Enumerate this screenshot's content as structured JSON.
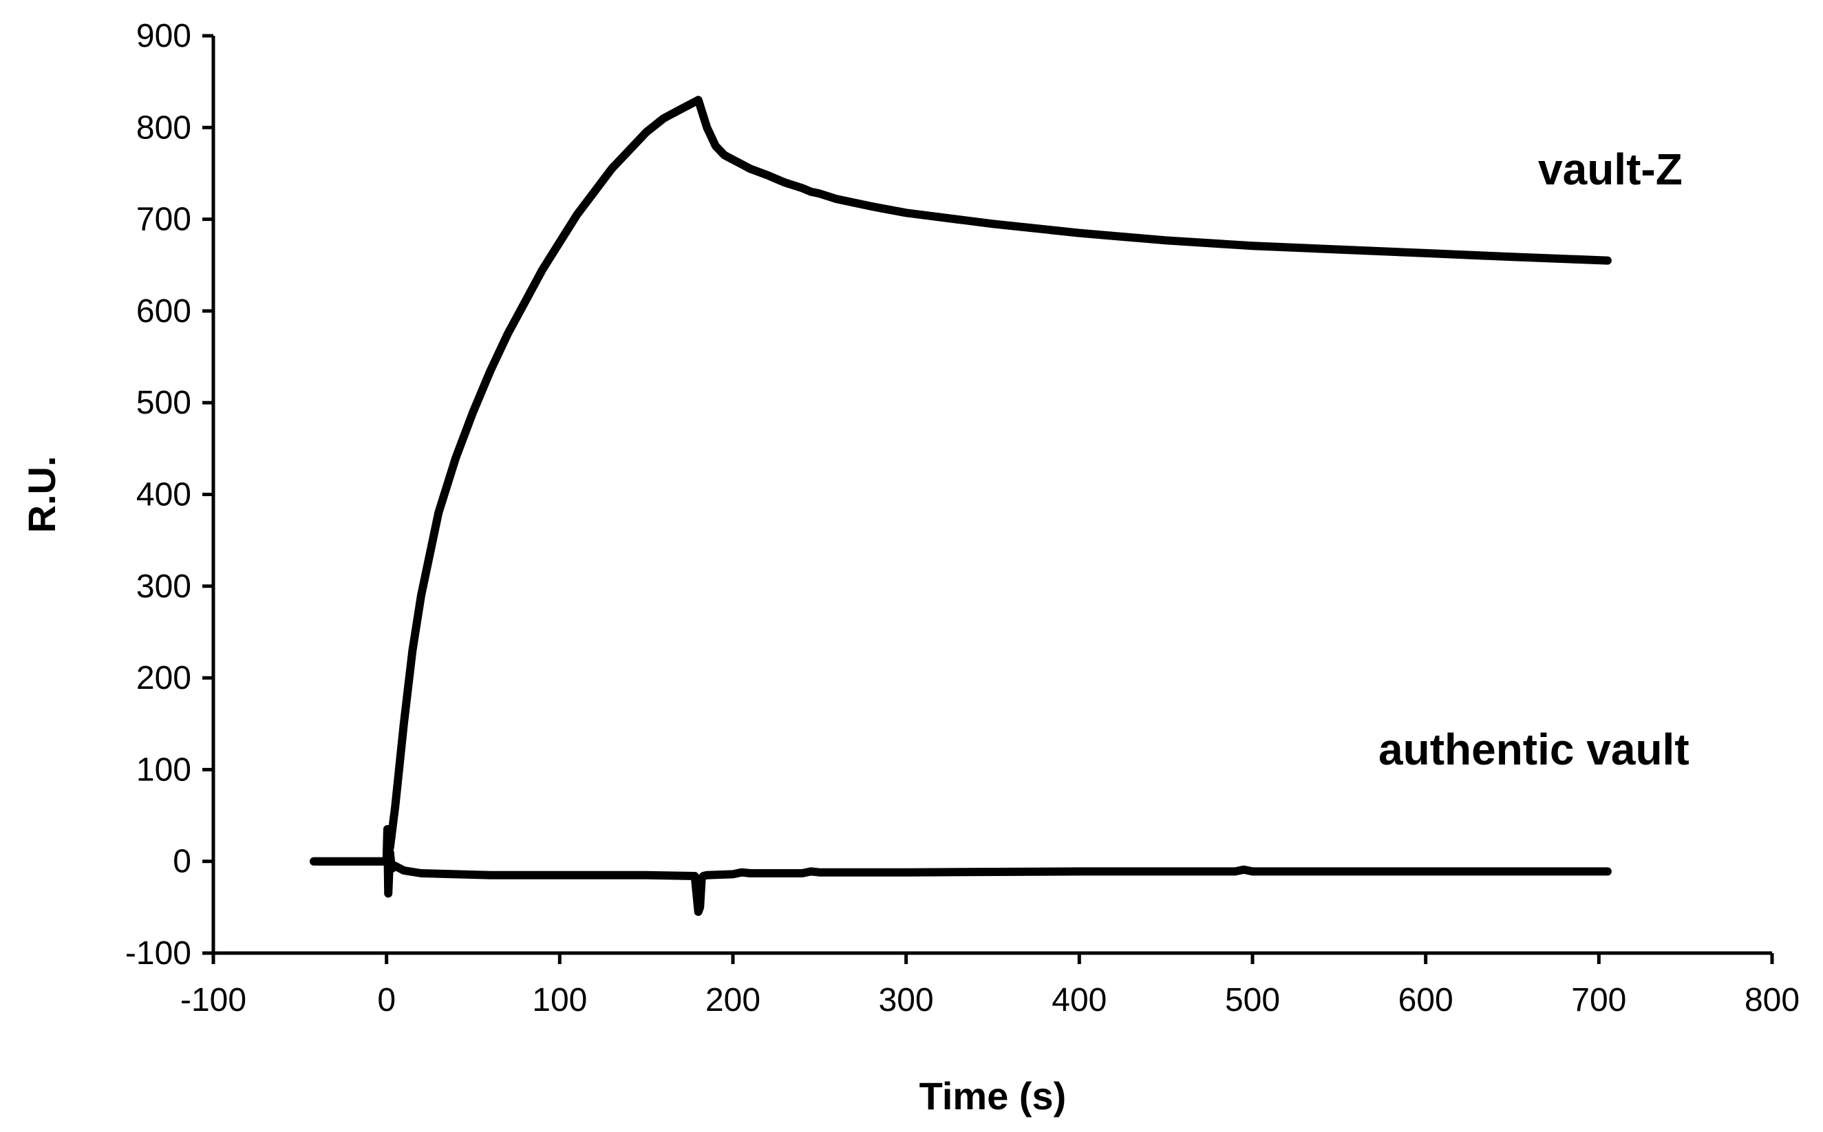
{
  "chart_data": {
    "type": "line",
    "title": "",
    "xlabel": "Time (s)",
    "ylabel": "R.U.",
    "xlim": [
      -100,
      800
    ],
    "ylim": [
      -100,
      900
    ],
    "xticks": [
      -100,
      0,
      100,
      200,
      300,
      400,
      500,
      600,
      700,
      800
    ],
    "yticks": [
      -100,
      0,
      100,
      200,
      300,
      400,
      500,
      600,
      700,
      800,
      900
    ],
    "xtick_labels": [
      "-100",
      "0",
      "100",
      "200",
      "300",
      "400",
      "500",
      "600",
      "700",
      "800"
    ],
    "ytick_labels": [
      "-100",
      "0",
      "100",
      "200",
      "300",
      "400",
      "500",
      "600",
      "700",
      "800",
      "900"
    ],
    "grid": false,
    "legend": "none",
    "annotations": [
      {
        "text": "vault-Z",
        "series": "vault-Z"
      },
      {
        "text": "authentic vault",
        "series": "authentic vault"
      }
    ],
    "series": [
      {
        "name": "vault-Z",
        "color": "#000000",
        "x": [
          -42,
          -20,
          0,
          1,
          2,
          5,
          10,
          15,
          20,
          30,
          40,
          50,
          60,
          70,
          80,
          90,
          100,
          110,
          120,
          130,
          140,
          150,
          160,
          170,
          175,
          178,
          180,
          182,
          185,
          190,
          195,
          200,
          205,
          210,
          220,
          230,
          240,
          245,
          250,
          260,
          280,
          300,
          350,
          400,
          450,
          500,
          550,
          600,
          650,
          705
        ],
        "y": [
          0,
          0,
          0,
          30,
          15,
          60,
          150,
          230,
          290,
          380,
          440,
          490,
          535,
          575,
          610,
          645,
          675,
          705,
          730,
          755,
          775,
          795,
          810,
          820,
          825,
          828,
          830,
          818,
          800,
          780,
          770,
          765,
          760,
          755,
          748,
          740,
          734,
          730,
          728,
          722,
          714,
          707,
          695,
          685,
          677,
          671,
          667,
          663,
          659,
          655
        ]
      },
      {
        "name": "authentic vault",
        "color": "#000000",
        "x": [
          -42,
          -20,
          0,
          0.5,
          1,
          2,
          3,
          5,
          10,
          20,
          40,
          60,
          100,
          150,
          178,
          180,
          181,
          182,
          183,
          185,
          200,
          205,
          210,
          240,
          245,
          250,
          300,
          400,
          490,
          495,
          500,
          600,
          705
        ],
        "y": [
          0,
          0,
          0,
          35,
          -35,
          10,
          -8,
          -5,
          -10,
          -13,
          -14,
          -15,
          -15,
          -15,
          -16,
          -55,
          -50,
          -18,
          -16,
          -15,
          -14,
          -12,
          -13,
          -13,
          -11,
          -12,
          -12,
          -11,
          -11,
          -9,
          -11,
          -11,
          -11
        ]
      }
    ]
  }
}
